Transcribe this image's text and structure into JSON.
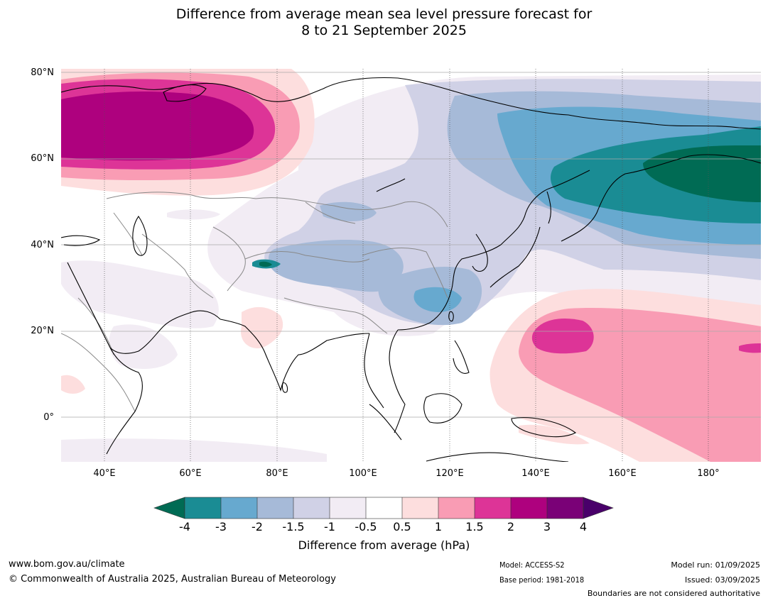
{
  "title_line1": "Difference from average mean sea level pressure forecast for",
  "title_line2": "8 to 21 September 2025",
  "map": {
    "extent": {
      "lon_min": 30,
      "lon_max": 192,
      "lat_min": -10,
      "lat_max": 80
    },
    "lat_labels": [
      "80°N",
      "60°N",
      "40°N",
      "20°N",
      "0°"
    ],
    "lon_labels": [
      "40°E",
      "60°E",
      "80°E",
      "100°E",
      "120°E",
      "140°E",
      "160°E",
      "180°"
    ]
  },
  "colorbar": {
    "ticks": [
      "-4",
      "-3",
      "-2",
      "-1.5",
      "-1",
      "-0.5",
      "0.5",
      "1",
      "1.5",
      "2",
      "3",
      "4"
    ],
    "colors": {
      "below_-4": "#006b54",
      "-4_to_-3": "#1a8c94",
      "-3_to_-2": "#67a9cf",
      "-2_to_-1.5": "#a6bad8",
      "-1.5_to_-1": "#d0d1e6",
      "-1_to_-0.5": "#f2ecf4",
      "-0.5_to_0.5": "#ffffff",
      "0.5_to_1": "#fddede",
      "1_to_1.5": "#f99cb4",
      "1.5_to_2": "#dd3497",
      "2_to_3": "#ae017e",
      "3_to_4": "#7a0177",
      "above_4": "#49006a"
    },
    "label": "Difference from average (hPa)"
  },
  "footer": {
    "website": "www.bom.gov.au/climate",
    "copyright": "© Commonwealth of Australia 2025, Australian Bureau of Meteorology",
    "model": "Model: ACCESS-S2",
    "base_period": "Base period: 1981-2018",
    "model_run": "Model run: 01/09/2025",
    "issued": "Issued: 03/09/2025",
    "disclaimer": "Boundaries are not considered authoritative"
  }
}
